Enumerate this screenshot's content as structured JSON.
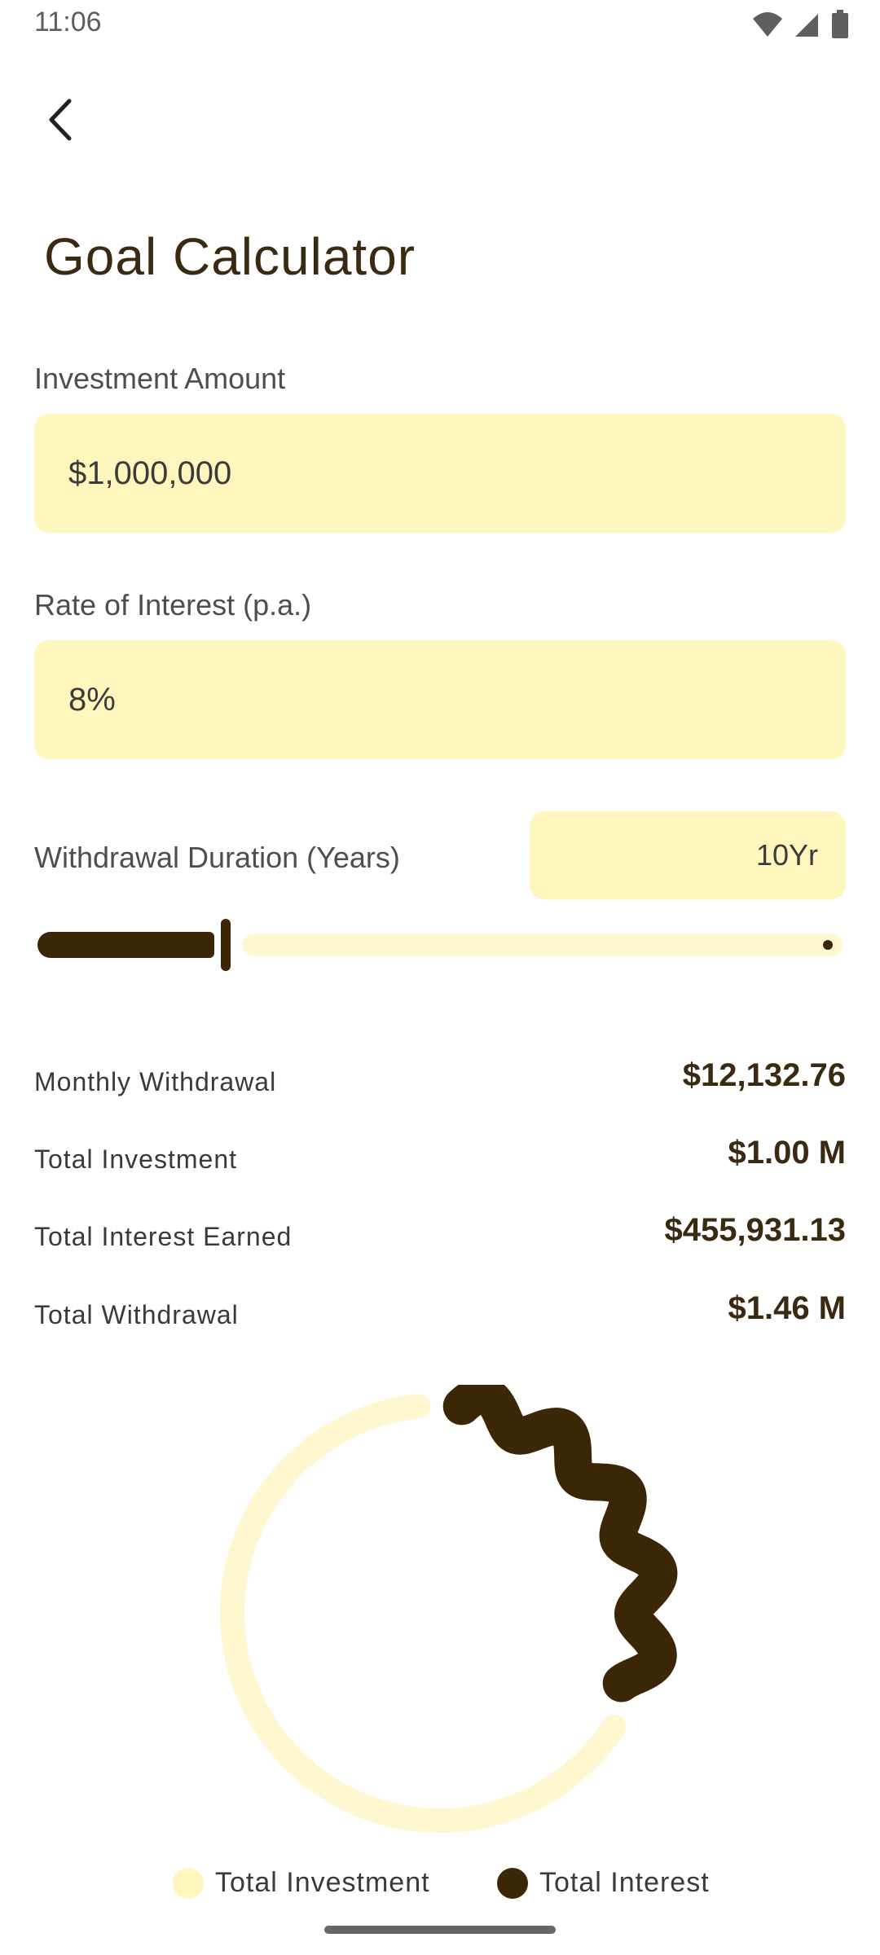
{
  "status": {
    "time": "11:06"
  },
  "header": {
    "title": "Goal Calculator",
    "back_icon": "chevron-left-icon"
  },
  "form": {
    "investment": {
      "label": "Investment Amount",
      "value": "$1,000,000"
    },
    "rate": {
      "label": "Rate of Interest (p.a.)",
      "value": "8%"
    },
    "duration": {
      "label": "Withdrawal Duration (Years)",
      "value": "10Yr",
      "slider_fraction": 0.23
    }
  },
  "results": [
    {
      "label": "Monthly Withdrawal",
      "value": "$12,132.76"
    },
    {
      "label": "Total Investment",
      "value": "$1.00 M"
    },
    {
      "label": "Total Interest Earned",
      "value": "$455,931.13"
    },
    {
      "label": "Total Withdrawal",
      "value": "$1.46 M"
    }
  ],
  "legend": {
    "investment_label": "Total Investment",
    "interest_label": "Total Interest"
  },
  "colors": {
    "accent_light": "#FFF6BE",
    "accent_dark": "#3B2605",
    "text_dark": "#3B2A12"
  },
  "chart_data": {
    "type": "pie",
    "title": "",
    "slices": [
      {
        "name": "Total Investment",
        "value": 1000000,
        "color": "#FFF7CF"
      },
      {
        "name": "Total Interest",
        "value": 455931.13,
        "color": "#3B2605"
      }
    ]
  }
}
